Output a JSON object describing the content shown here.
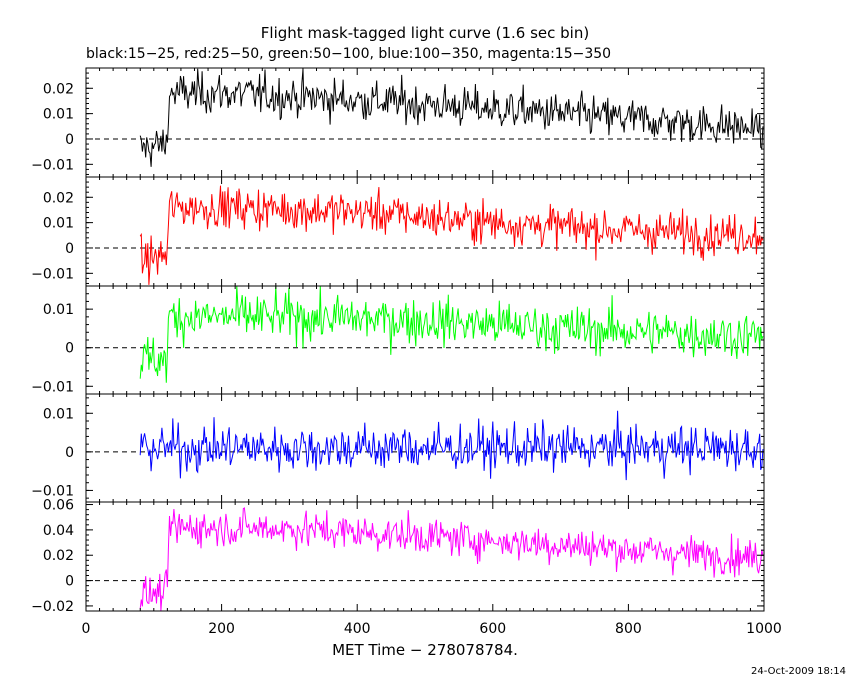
{
  "title": "Flight mask-tagged light curve (1.6 sec bin)",
  "subtitle": "black:15−25, red:25−50, green:50−100, blue:100−350, magenta:15−350",
  "xlabel": "MET Time − 278078784.",
  "timestamp": "24-Oct-2009 18:14",
  "chart_data": {
    "type": "line",
    "title": "Flight mask-tagged light curve (1.6 sec bin)",
    "subtitle": "black:15−25, red:25−50, green:50−100, blue:100−350, magenta:15−350",
    "xlabel": "MET Time − 278078784.",
    "xlim": [
      0,
      1000
    ],
    "xticks": [
      0,
      200,
      400,
      600,
      800,
      1000
    ],
    "bin_seconds": 1.6,
    "data_x_range": [
      80,
      1000
    ],
    "zero_reference_line": "dashed",
    "grid": false,
    "legend": "subtitle",
    "panels": [
      {
        "name": "black:15−25",
        "color": "#000000",
        "ylim": [
          -0.015,
          0.028
        ],
        "yticks": [
          -0.01,
          0,
          0.01,
          0.02
        ],
        "yticklabels": [
          "−0.01",
          "0",
          "0.01",
          "0.02"
        ],
        "profile": [
          [
            80,
            -0.004
          ],
          [
            120,
            -0.002
          ],
          [
            122,
            0.018
          ],
          [
            220,
            0.018
          ],
          [
            420,
            0.015
          ],
          [
            600,
            0.012
          ],
          [
            800,
            0.008
          ],
          [
            1000,
            0.004
          ]
        ],
        "noise": 0.004
      },
      {
        "name": "red:25−50",
        "color": "#ff0000",
        "ylim": [
          -0.015,
          0.028
        ],
        "yticks": [
          -0.01,
          0,
          0.01,
          0.02
        ],
        "yticklabels": [
          "−0.01",
          "0",
          "0.01",
          "0.02"
        ],
        "profile": [
          [
            80,
            -0.005
          ],
          [
            120,
            -0.003
          ],
          [
            122,
            0.016
          ],
          [
            220,
            0.016
          ],
          [
            420,
            0.014
          ],
          [
            600,
            0.01
          ],
          [
            800,
            0.007
          ],
          [
            1000,
            0.005
          ]
        ],
        "noise": 0.004
      },
      {
        "name": "green:50−100",
        "color": "#00ff00",
        "ylim": [
          -0.012,
          0.016
        ],
        "yticks": [
          -0.01,
          0,
          0.01
        ],
        "yticklabels": [
          "−0.01",
          "0",
          "0.01"
        ],
        "profile": [
          [
            80,
            -0.003
          ],
          [
            120,
            -0.003
          ],
          [
            122,
            0.008
          ],
          [
            300,
            0.008
          ],
          [
            500,
            0.007
          ],
          [
            700,
            0.005
          ],
          [
            1000,
            0.003
          ]
        ],
        "noise": 0.003
      },
      {
        "name": "blue:100−350",
        "color": "#0000ff",
        "ylim": [
          -0.013,
          0.015
        ],
        "yticks": [
          -0.01,
          0,
          0.01
        ],
        "yticklabels": [
          "−0.01",
          "0",
          "0.01"
        ],
        "profile": [
          [
            80,
            0.001
          ],
          [
            1000,
            0.001
          ]
        ],
        "noise": 0.003
      },
      {
        "name": "magenta:15−350",
        "color": "#ff00ff",
        "ylim": [
          -0.024,
          0.062
        ],
        "yticks": [
          -0.02,
          0,
          0.02,
          0.04,
          0.06
        ],
        "yticklabels": [
          "−0.02",
          "0",
          "0.02",
          "0.04",
          "0.06"
        ],
        "profile": [
          [
            80,
            -0.012
          ],
          [
            120,
            -0.009
          ],
          [
            122,
            0.042
          ],
          [
            300,
            0.041
          ],
          [
            500,
            0.035
          ],
          [
            700,
            0.028
          ],
          [
            900,
            0.021
          ],
          [
            1000,
            0.018
          ]
        ],
        "noise": 0.007
      }
    ]
  }
}
